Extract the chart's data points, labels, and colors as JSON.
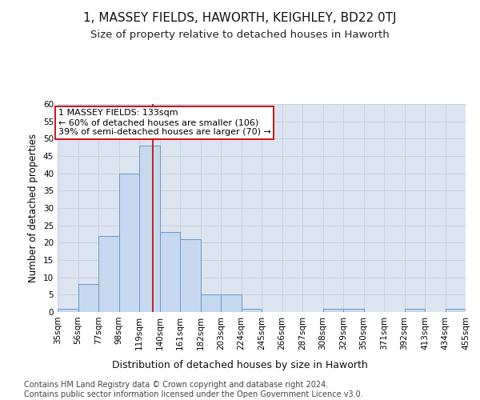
{
  "title": "1, MASSEY FIELDS, HAWORTH, KEIGHLEY, BD22 0TJ",
  "subtitle": "Size of property relative to detached houses in Haworth",
  "xlabel": "Distribution of detached houses by size in Haworth",
  "ylabel": "Number of detached properties",
  "bin_edges": [
    35,
    56,
    77,
    98,
    119,
    140,
    161,
    182,
    203,
    224,
    245,
    266,
    287,
    308,
    329,
    350,
    371,
    392,
    413,
    434,
    455
  ],
  "bar_heights": [
    1,
    8,
    22,
    40,
    48,
    23,
    21,
    5,
    5,
    1,
    0,
    0,
    0,
    1,
    1,
    0,
    0,
    1,
    0,
    1
  ],
  "bar_color": "#c5d8ee",
  "bar_edgecolor": "#6699cc",
  "property_size": 133,
  "redline_color": "#cc0000",
  "annotation_line1": "1 MASSEY FIELDS: 133sqm",
  "annotation_line2": "← 60% of detached houses are smaller (106)",
  "annotation_line3": "39% of semi-detached houses are larger (70) →",
  "annotation_box_edgecolor": "#cc0000",
  "ylim": [
    0,
    60
  ],
  "yticks": [
    0,
    5,
    10,
    15,
    20,
    25,
    30,
    35,
    40,
    45,
    50,
    55,
    60
  ],
  "grid_color": "#c8d0e0",
  "bg_color": "#dce4f0",
  "footer_text": "Contains HM Land Registry data © Crown copyright and database right 2024.\nContains public sector information licensed under the Open Government Licence v3.0.",
  "title_fontsize": 11,
  "subtitle_fontsize": 9.5,
  "xlabel_fontsize": 9,
  "ylabel_fontsize": 8.5,
  "tick_fontsize": 7.5,
  "annotation_fontsize": 8,
  "footer_fontsize": 7
}
